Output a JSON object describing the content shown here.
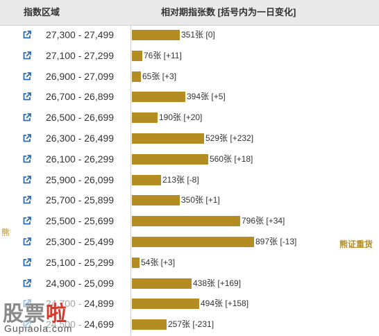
{
  "header": {
    "range_title": "指数区域",
    "count_title": "相对期指张数 [括号内为一日变化]"
  },
  "side_labels": {
    "left": "熊",
    "right": "熊证重货"
  },
  "watermark": {
    "text_main": "股票",
    "text_accent": "啦",
    "text_url": "Gupiaola.com"
  },
  "colors": {
    "bar": "#b38d22",
    "header_bg": "#e9e9e9",
    "icon": "#2b6cb0"
  },
  "icon_name": "external-link-icon",
  "chart_data": {
    "type": "bar",
    "orientation": "horizontal",
    "title": "相对期指张数 [括号内为一日变化]",
    "category_header": "指数区域",
    "unit": "张",
    "xlim": [
      0,
      897
    ],
    "categories": [
      "27,300 - 27,499",
      "27,100 - 27,299",
      "26,900 - 27,099",
      "26,700 - 26,899",
      "26,500 - 26,699",
      "26,300 - 26,499",
      "26,100 - 26,299",
      "25,900 - 26,099",
      "25,700 - 25,899",
      "25,500 - 25,699",
      "25,300 - 25,499",
      "25,100 - 25,299",
      "24,900 - 25,099",
      "24,700 - 24,899",
      "24,500 - 24,699"
    ],
    "series": [
      {
        "values": [
          351,
          76,
          65,
          394,
          190,
          529,
          560,
          213,
          350,
          796,
          897,
          54,
          438,
          494,
          257
        ],
        "changes": [
          "[0]",
          "[+11]",
          "[+3]",
          "[+5]",
          "[+20]",
          "[+232]",
          "[+18]",
          "[-8]",
          "[+1]",
          "[+34]",
          "[-13]",
          "[+3]",
          "[+169]",
          "[+158]",
          "[-231]"
        ]
      }
    ],
    "grid": false,
    "legend": "none"
  }
}
